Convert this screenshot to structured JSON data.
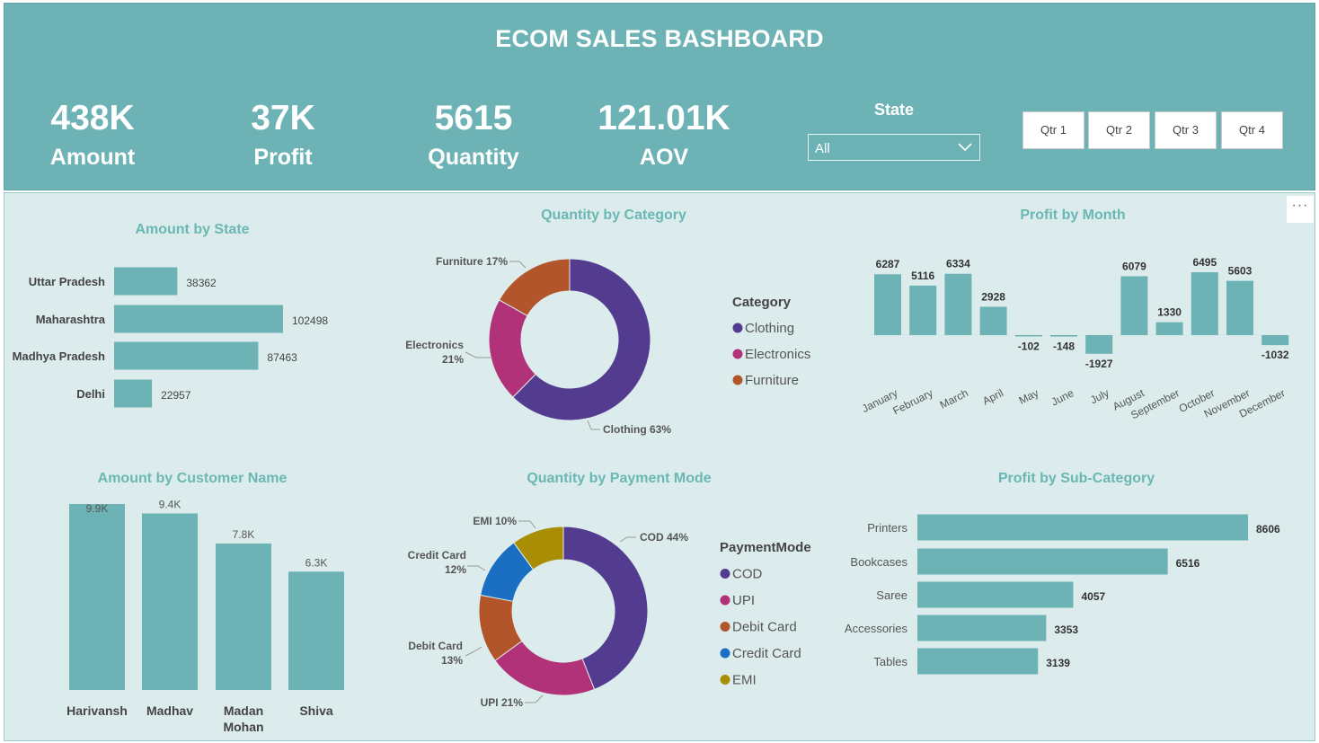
{
  "header": {
    "title": "ECOM SALES BASHBOARD",
    "kpis": [
      {
        "value": "438K",
        "label": "Amount"
      },
      {
        "value": "37K",
        "label": "Profit"
      },
      {
        "value": "5615",
        "label": "Quantity"
      },
      {
        "value": "121.01K",
        "label": "AOV"
      }
    ],
    "state_slicer": {
      "label": "State",
      "value": "All"
    },
    "quarters": [
      "Qtr 1",
      "Qtr 2",
      "Qtr 3",
      "Qtr 4"
    ]
  },
  "more_options": "···",
  "colors": {
    "bar": "#6db3b6",
    "header": "#6db3b6",
    "panel": "#dcecec",
    "title": "#6ab7b3"
  },
  "chart_data": [
    {
      "id": "amount_by_state",
      "type": "bar",
      "orientation": "horizontal",
      "title": "Amount by State",
      "categories": [
        "Uttar Pradesh",
        "Maharashtra",
        "Madhya Pradesh",
        "Delhi"
      ],
      "values": [
        38362,
        102498,
        87463,
        22957
      ],
      "labels": [
        "38362",
        "102498",
        "87463",
        "22957"
      ]
    },
    {
      "id": "quantity_by_category",
      "type": "pie",
      "donut": true,
      "title": "Quantity by Category",
      "legend_title": "Category",
      "categories": [
        "Clothing",
        "Electronics",
        "Furniture"
      ],
      "values": [
        63,
        21,
        17
      ],
      "labels": [
        "Clothing 63%",
        "Electronics 21%",
        "Furniture 17%"
      ],
      "colors": [
        "#533b8f",
        "#b23279",
        "#b3552a"
      ]
    },
    {
      "id": "profit_by_month",
      "type": "bar",
      "title": "Profit by Month",
      "categories": [
        "January",
        "February",
        "March",
        "April",
        "May",
        "June",
        "July",
        "August",
        "September",
        "October",
        "November",
        "December"
      ],
      "values": [
        6287,
        5116,
        6334,
        2928,
        -102,
        -148,
        -1927,
        6079,
        1330,
        6495,
        5603,
        -1032
      ],
      "labels": [
        "6287",
        "5116",
        "6334",
        "2928",
        "-102",
        "-148",
        "-1927",
        "6079",
        "1330",
        "6495",
        "5603",
        "-1032"
      ]
    },
    {
      "id": "amount_by_customer",
      "type": "bar",
      "title": "Amount by Customer Name",
      "categories": [
        "Harivansh",
        "Madhav",
        "Madan Mohan",
        "Shiva"
      ],
      "values": [
        9.9,
        9.4,
        7.8,
        6.3
      ],
      "labels": [
        "9.9K",
        "9.4K",
        "7.8K",
        "6.3K"
      ]
    },
    {
      "id": "quantity_by_payment_mode",
      "type": "pie",
      "donut": true,
      "title": "Quantity by Payment Mode",
      "legend_title": "PaymentMode",
      "categories": [
        "COD",
        "UPI",
        "Debit Card",
        "Credit Card",
        "EMI"
      ],
      "values": [
        44,
        21,
        13,
        12,
        10
      ],
      "labels": [
        "COD 44%",
        "UPI 21%",
        "Debit Card 13%",
        "Credit Card 12%",
        "EMI 10%"
      ],
      "colors": [
        "#533b8f",
        "#b23279",
        "#b3552a",
        "#1a6fc2",
        "#a98e05"
      ]
    },
    {
      "id": "profit_by_subcategory",
      "type": "bar",
      "orientation": "horizontal",
      "title": "Profit by Sub-Category",
      "categories": [
        "Printers",
        "Bookcases",
        "Saree",
        "Accessories",
        "Tables"
      ],
      "values": [
        8606,
        6516,
        4057,
        3353,
        3139
      ],
      "labels": [
        "8606",
        "6516",
        "4057",
        "3353",
        "3139"
      ]
    }
  ]
}
